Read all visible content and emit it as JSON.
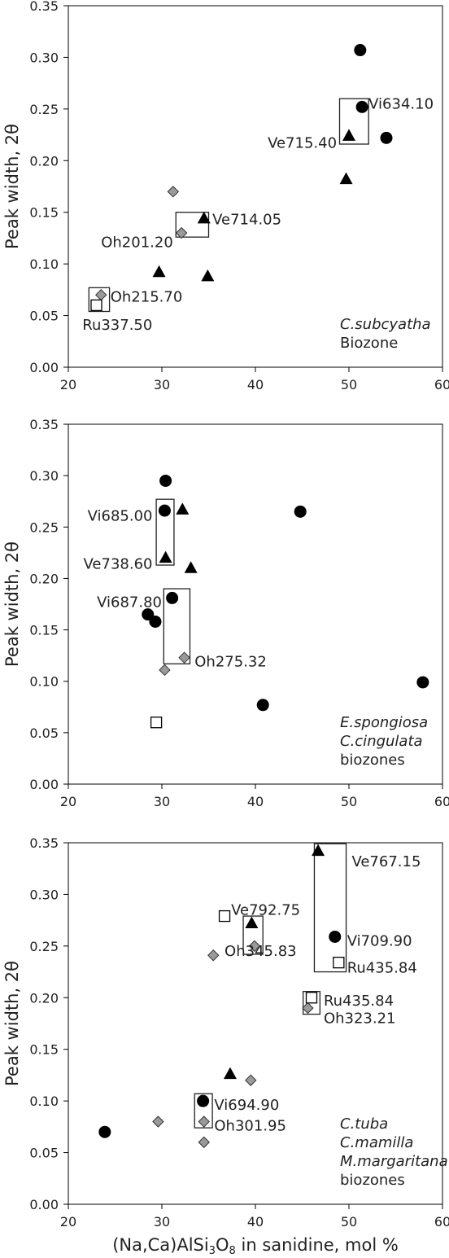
{
  "chart_data": [
    {
      "type": "scatter",
      "ylabel": "Peak width, 2θ",
      "xlabel": "",
      "xlim": [
        20,
        60
      ],
      "ylim": [
        0,
        0.35
      ],
      "x_ticks": [
        "20",
        "30",
        "40",
        "50",
        "60"
      ],
      "y_ticks": [
        "0.00",
        "0.05",
        "0.10",
        "0.15",
        "0.20",
        "0.25",
        "0.30",
        "0.35"
      ],
      "annotation": [
        "C.subcyatha",
        "Biozone"
      ],
      "points": [
        {
          "marker": "circle",
          "x": 51.2,
          "y": 0.307
        },
        {
          "marker": "circle",
          "x": 51.4,
          "y": 0.252
        },
        {
          "marker": "circle",
          "x": 54.0,
          "y": 0.222
        },
        {
          "marker": "triangle",
          "x": 50.0,
          "y": 0.224
        },
        {
          "marker": "triangle",
          "x": 49.7,
          "y": 0.182
        },
        {
          "marker": "triangle",
          "x": 34.5,
          "y": 0.144
        },
        {
          "marker": "triangle",
          "x": 29.7,
          "y": 0.092
        },
        {
          "marker": "triangle",
          "x": 34.9,
          "y": 0.088
        },
        {
          "marker": "diamond",
          "x": 31.2,
          "y": 0.17
        },
        {
          "marker": "diamond",
          "x": 32.1,
          "y": 0.13
        },
        {
          "marker": "diamond",
          "x": 23.5,
          "y": 0.07
        },
        {
          "marker": "square",
          "x": 23.0,
          "y": 0.06
        }
      ],
      "boxes": [
        {
          "x": [
            49.0,
            52.1
          ],
          "y": [
            0.216,
            0.26
          ]
        },
        {
          "x": [
            31.5,
            35.0
          ],
          "y": [
            0.126,
            0.15
          ]
        },
        {
          "x": [
            22.2,
            24.4
          ],
          "y": [
            0.054,
            0.077
          ]
        }
      ],
      "labels": [
        {
          "text": "Vi634.10",
          "x": 52.1,
          "y": 0.255,
          "anchor": "start"
        },
        {
          "text": "Ve715.40",
          "x": 48.7,
          "y": 0.217,
          "anchor": "end"
        },
        {
          "text": "Ve714.05",
          "x": 35.4,
          "y": 0.143,
          "anchor": "start"
        },
        {
          "text": "Oh201.20",
          "x": 31.2,
          "y": 0.121,
          "anchor": "end"
        },
        {
          "text": "Oh215.70",
          "x": 24.5,
          "y": 0.068,
          "anchor": "start"
        },
        {
          "text": "Ru337.50",
          "x": 21.5,
          "y": 0.041,
          "anchor": "start"
        }
      ]
    },
    {
      "type": "scatter",
      "ylabel": "Peak width, 2θ",
      "xlabel": "",
      "xlim": [
        20,
        60
      ],
      "ylim": [
        0,
        0.35
      ],
      "x_ticks": [
        "20",
        "30",
        "40",
        "50",
        "60"
      ],
      "y_ticks": [
        "0.00",
        "0.05",
        "0.10",
        "0.15",
        "0.20",
        "0.25",
        "0.30",
        "0.35"
      ],
      "annotation": [
        "E.spongiosa",
        "C.cingulata",
        "biozones"
      ],
      "points": [
        {
          "marker": "circle",
          "x": 30.4,
          "y": 0.295
        },
        {
          "marker": "circle",
          "x": 30.3,
          "y": 0.266
        },
        {
          "marker": "circle",
          "x": 44.8,
          "y": 0.265
        },
        {
          "marker": "circle",
          "x": 31.1,
          "y": 0.181
        },
        {
          "marker": "circle",
          "x": 28.5,
          "y": 0.165
        },
        {
          "marker": "circle",
          "x": 29.3,
          "y": 0.158
        },
        {
          "marker": "circle",
          "x": 40.8,
          "y": 0.077
        },
        {
          "marker": "circle",
          "x": 57.9,
          "y": 0.099
        },
        {
          "marker": "triangle",
          "x": 32.2,
          "y": 0.267
        },
        {
          "marker": "triangle",
          "x": 30.4,
          "y": 0.22
        },
        {
          "marker": "triangle",
          "x": 33.1,
          "y": 0.21
        },
        {
          "marker": "diamond",
          "x": 32.4,
          "y": 0.123
        },
        {
          "marker": "diamond",
          "x": 30.3,
          "y": 0.111
        },
        {
          "marker": "square",
          "x": 29.4,
          "y": 0.06
        }
      ],
      "boxes": [
        {
          "x": [
            29.4,
            31.3
          ],
          "y": [
            0.213,
            0.277
          ]
        },
        {
          "x": [
            30.2,
            33.0
          ],
          "y": [
            0.117,
            0.19
          ]
        }
      ],
      "labels": [
        {
          "text": "Vi685.00",
          "x": 29.0,
          "y": 0.261,
          "anchor": "end"
        },
        {
          "text": "Ve738.60",
          "x": 29.0,
          "y": 0.214,
          "anchor": "end"
        },
        {
          "text": "Vi687.80",
          "x": 30.0,
          "y": 0.177,
          "anchor": "end"
        },
        {
          "text": "Oh275.32",
          "x": 33.5,
          "y": 0.119,
          "anchor": "start"
        }
      ]
    },
    {
      "type": "scatter",
      "ylabel": "Peak width, 2θ",
      "xlabel": "(Na,Ca)AlSi3O8 in sanidine, mol %",
      "xlim": [
        20,
        60
      ],
      "ylim": [
        0,
        0.35
      ],
      "x_ticks": [
        "20",
        "30",
        "40",
        "50",
        "60"
      ],
      "y_ticks": [
        "0.00",
        "0.05",
        "0.10",
        "0.15",
        "0.20",
        "0.25",
        "0.30",
        "0.35"
      ],
      "annotation": [
        "C.tuba",
        "C.mamilla",
        "M.margaritana",
        "biozones"
      ],
      "points": [
        {
          "marker": "circle",
          "x": 48.5,
          "y": 0.259
        },
        {
          "marker": "circle",
          "x": 34.4,
          "y": 0.1
        },
        {
          "marker": "circle",
          "x": 23.9,
          "y": 0.07
        },
        {
          "marker": "triangle",
          "x": 46.7,
          "y": 0.342
        },
        {
          "marker": "triangle",
          "x": 39.6,
          "y": 0.272
        },
        {
          "marker": "triangle",
          "x": 37.3,
          "y": 0.126
        },
        {
          "marker": "diamond",
          "x": 39.9,
          "y": 0.25
        },
        {
          "marker": "diamond",
          "x": 35.5,
          "y": 0.241
        },
        {
          "marker": "diamond",
          "x": 45.6,
          "y": 0.19
        },
        {
          "marker": "diamond",
          "x": 39.5,
          "y": 0.12
        },
        {
          "marker": "diamond",
          "x": 29.6,
          "y": 0.08
        },
        {
          "marker": "diamond",
          "x": 34.5,
          "y": 0.08
        },
        {
          "marker": "diamond",
          "x": 34.5,
          "y": 0.06
        },
        {
          "marker": "square",
          "x": 36.7,
          "y": 0.279
        },
        {
          "marker": "square",
          "x": 48.9,
          "y": 0.234
        },
        {
          "marker": "square",
          "x": 46.0,
          "y": 0.2
        }
      ],
      "boxes": [
        {
          "x": [
            46.3,
            49.7
          ],
          "y": [
            0.225,
            0.349
          ]
        },
        {
          "x": [
            38.7,
            40.8
          ],
          "y": [
            0.242,
            0.279
          ]
        },
        {
          "x": [
            45.1,
            46.9
          ],
          "y": [
            0.184,
            0.206
          ]
        },
        {
          "x": [
            33.5,
            35.4
          ],
          "y": [
            0.074,
            0.107
          ]
        }
      ],
      "labels": [
        {
          "text": "Ve767.15",
          "x": 50.3,
          "y": 0.332,
          "anchor": "start"
        },
        {
          "text": "Ve792.75",
          "x": 37.4,
          "y": 0.285,
          "anchor": "start"
        },
        {
          "text": "Vi709.90",
          "x": 49.8,
          "y": 0.255,
          "anchor": "start"
        },
        {
          "text": "Oh345.83",
          "x": 36.7,
          "y": 0.245,
          "anchor": "start"
        },
        {
          "text": "Ru435.84",
          "x": 49.8,
          "y": 0.229,
          "anchor": "start"
        },
        {
          "text": "Ru435.84",
          "x": 47.3,
          "y": 0.197,
          "anchor": "start"
        },
        {
          "text": "Oh323.21",
          "x": 47.3,
          "y": 0.18,
          "anchor": "start"
        },
        {
          "text": "Vi694.90",
          "x": 35.6,
          "y": 0.096,
          "anchor": "start"
        },
        {
          "text": "Oh301.95",
          "x": 35.6,
          "y": 0.076,
          "anchor": "start"
        }
      ]
    }
  ]
}
